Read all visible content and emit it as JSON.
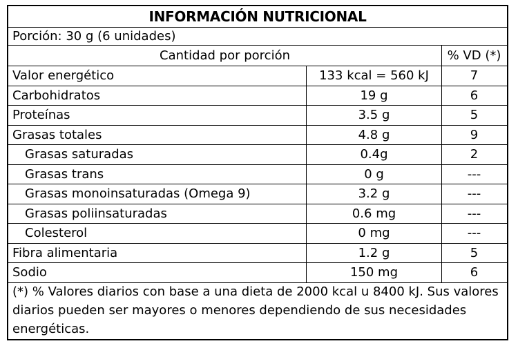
{
  "title": "INFORMACIÓN NUTRICIONAL",
  "portion": "Porción: 30 g (6 unidades)",
  "header": {
    "amount": "Cantidad por porción",
    "vd": "% VD (*)"
  },
  "rows": [
    {
      "name": "Valor energético",
      "amount": "133 kcal = 560 kJ",
      "vd": "7"
    },
    {
      "name": "Carbohidratos",
      "amount": "19 g",
      "vd": "6"
    },
    {
      "name": "Proteínas",
      "amount": "3.5 g",
      "vd": "5"
    },
    {
      "name": "Grasas totales",
      "amount": "4.8 g",
      "vd": "9"
    },
    {
      "name": "Grasas saturadas",
      "amount": "0.4g",
      "vd": "2"
    },
    {
      "name": "Grasas trans",
      "amount": "0 g",
      "vd": "---"
    },
    {
      "name": "Grasas monoinsaturadas (Omega 9)",
      "amount": "3.2 g",
      "vd": "---"
    },
    {
      "name": "Grasas poliinsaturadas",
      "amount": "0.6 mg",
      "vd": "---"
    },
    {
      "name": "Colesterol",
      "amount": "0 mg",
      "vd": "---"
    },
    {
      "name": "Fibra alimentaria",
      "amount": "1.2 g",
      "vd": "5"
    },
    {
      "name": "Sodio",
      "amount": "150 mg",
      "vd": "6"
    }
  ],
  "footnote": "(*) % Valores diarios con base a una dieta de 2000 kcal u 8400 kJ. Sus valores diarios pueden ser mayores o menores dependiendo de sus necesidades energéticas."
}
